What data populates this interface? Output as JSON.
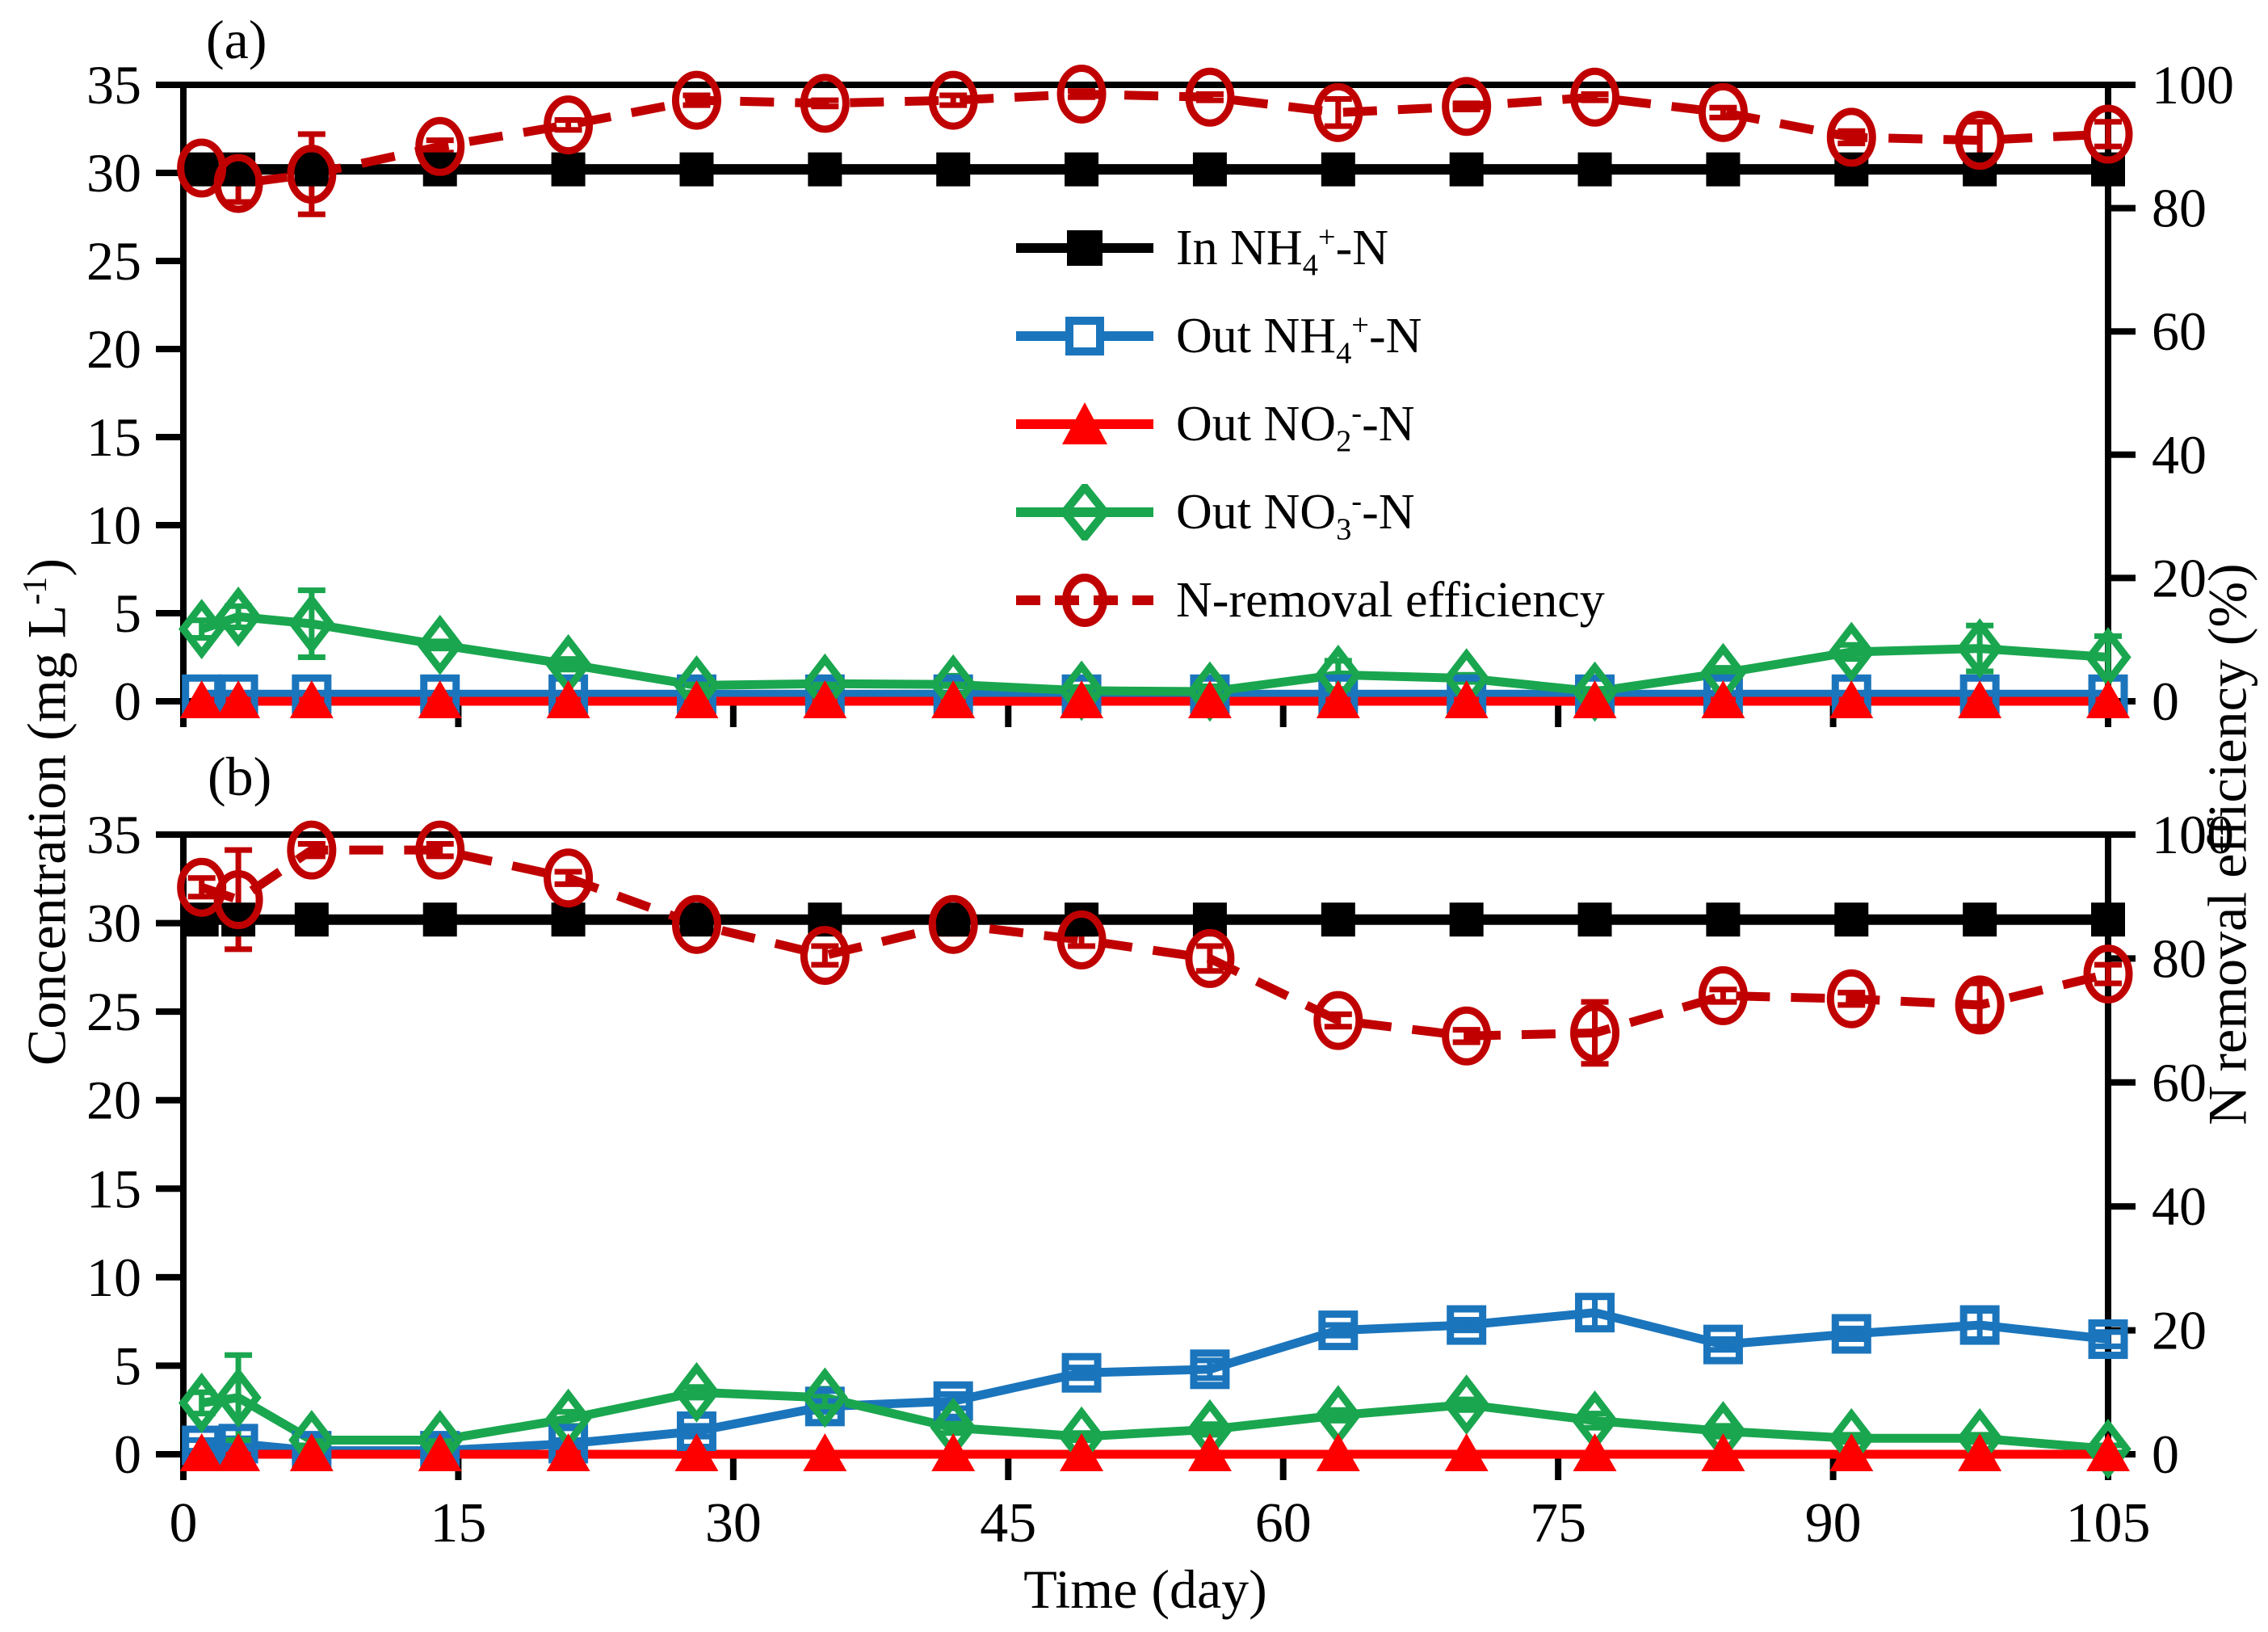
{
  "figure": {
    "panel_a_label": "(a)",
    "panel_b_label": "(b)",
    "x_axis_title": "Time (day)",
    "y_left_title_pre": "Concentration (mg L",
    "y_left_title_sup": "-1",
    "y_left_title_post": ")",
    "y_right_title": "N removal efficiency (%)"
  },
  "legend": {
    "items": [
      {
        "marker": "black-filled-square-icon",
        "pre": "In NH",
        "sub": "4",
        "sup": "+",
        "post": "-N"
      },
      {
        "marker": "blue-open-square-icon",
        "pre": "Out NH",
        "sub": "4",
        "sup": "+",
        "post": "-N"
      },
      {
        "marker": "red-filled-triangle-icon",
        "pre": "Out NO",
        "sub": "2",
        "sup": "-",
        "post": "-N"
      },
      {
        "marker": "green-open-diamond-icon",
        "pre": "Out NO",
        "sub": "3",
        "sup": "-",
        "post": "-N"
      },
      {
        "marker": "darkred-open-circle-icon",
        "pre": "N-removal efficiency",
        "sub": "",
        "sup": "",
        "post": ""
      }
    ]
  },
  "colors": {
    "black": "#000000",
    "blue": "#1b75bc",
    "green": "#1aa64f",
    "red": "#ff0000",
    "dark_red": "#c00000"
  },
  "chart_data": [
    {
      "type": "line",
      "panel": "a",
      "title": "",
      "xlabel": "Time (day)",
      "ylabel_left": "Concentration (mg L-1)",
      "ylabel_right": "N removal efficiency (%)",
      "xlim": [
        0,
        105
      ],
      "ylim_left": [
        0,
        35
      ],
      "ylim_right": [
        0,
        100
      ],
      "x_ticks": [
        0,
        15,
        30,
        45,
        60,
        75,
        90,
        105
      ],
      "left_ticks": [
        0,
        5,
        10,
        15,
        20,
        25,
        30,
        35
      ],
      "right_ticks": [
        0,
        20,
        40,
        60,
        80,
        100
      ],
      "x": [
        1,
        3,
        7,
        14,
        21,
        28,
        35,
        42,
        49,
        56,
        63,
        70,
        77,
        84,
        91,
        98,
        105
      ],
      "series": [
        {
          "id": "in_nh4",
          "name": "In NH4+-N",
          "axis": "left",
          "color": "black",
          "marker": "square-filled",
          "values": [
            30.2,
            30.2,
            30.2,
            30.2,
            30.2,
            30.2,
            30.2,
            30.2,
            30.2,
            30.2,
            30.2,
            30.2,
            30.2,
            30.2,
            30.2,
            30.2,
            30.2
          ],
          "errors": [
            0.6,
            0.5,
            0,
            0,
            0,
            0,
            0,
            0,
            0,
            0,
            0,
            0,
            0,
            0,
            0,
            0,
            0
          ]
        },
        {
          "id": "out_nh4",
          "name": "Out NH4+-N",
          "axis": "left",
          "color": "blue",
          "marker": "square-open",
          "values": [
            0.4,
            0.4,
            0.4,
            0.4,
            0.4,
            0.4,
            0.4,
            0.4,
            0.4,
            0.4,
            0.4,
            0.4,
            0.4,
            0.4,
            0.4,
            0.4,
            0.4
          ],
          "errors": [
            0,
            0,
            0,
            0,
            0,
            0,
            0,
            0,
            0,
            0,
            0,
            0,
            0,
            0,
            0,
            0,
            0
          ]
        },
        {
          "id": "out_no2",
          "name": "Out NO2--N",
          "axis": "left",
          "color": "red",
          "marker": "triangle-filled",
          "values": [
            0,
            0,
            0,
            0,
            0,
            0,
            0,
            0,
            0,
            0,
            0,
            0,
            0,
            0,
            0,
            0,
            0
          ],
          "errors": [
            0,
            0,
            0,
            0,
            0,
            0,
            0,
            0,
            0,
            0,
            0,
            0,
            0,
            0,
            0,
            0,
            0
          ]
        },
        {
          "id": "out_no3",
          "name": "Out NO3--N",
          "axis": "left",
          "color": "green",
          "marker": "diamond-open",
          "values": [
            4.1,
            4.8,
            4.4,
            3.2,
            2.1,
            0.9,
            1.0,
            0.95,
            0.6,
            0.55,
            1.5,
            1.3,
            0.55,
            1.6,
            2.8,
            3.0,
            2.5
          ],
          "errors": [
            0.5,
            0.6,
            1.9,
            0.2,
            0.3,
            0.4,
            0.2,
            0.5,
            0.2,
            0.3,
            0.8,
            0.2,
            0.15,
            0.3,
            0.4,
            1.3,
            1.2
          ]
        },
        {
          "id": "eff",
          "name": "N-removal efficiency",
          "axis": "right",
          "color": "dark_red",
          "marker": "circle-open",
          "dashed": true,
          "values": [
            86.5,
            84,
            85.5,
            90,
            93.5,
            97.5,
            97,
            97.5,
            98.5,
            98,
            95.5,
            96.5,
            98,
            95.5,
            91.5,
            91,
            92
          ],
          "errors": [
            1.5,
            3,
            6.5,
            1,
            0.8,
            0.8,
            0.5,
            0.8,
            0.5,
            0.5,
            2.2,
            0.5,
            0.5,
            0.8,
            1,
            3,
            2
          ]
        }
      ]
    },
    {
      "type": "line",
      "panel": "b",
      "title": "",
      "xlabel": "Time (day)",
      "ylabel_left": "Concentration (mg L-1)",
      "ylabel_right": "N removal efficiency (%)",
      "xlim": [
        0,
        105
      ],
      "ylim_left": [
        0,
        35
      ],
      "ylim_right": [
        0,
        100
      ],
      "x_ticks": [
        0,
        15,
        30,
        45,
        60,
        75,
        90,
        105
      ],
      "left_ticks": [
        0,
        5,
        10,
        15,
        20,
        25,
        30,
        35
      ],
      "right_ticks": [
        0,
        20,
        40,
        60,
        80,
        100
      ],
      "x": [
        1,
        3,
        7,
        14,
        21,
        28,
        35,
        42,
        49,
        56,
        63,
        70,
        77,
        84,
        91,
        98,
        105
      ],
      "series": [
        {
          "id": "in_nh4",
          "name": "In NH4+-N",
          "axis": "left",
          "color": "black",
          "marker": "square-filled",
          "values": [
            30.2,
            30.2,
            30.2,
            30.2,
            30.2,
            30.2,
            30.2,
            30.2,
            30.2,
            30.2,
            30.2,
            30.2,
            30.2,
            30.2,
            30.2,
            30.2,
            30.2
          ],
          "errors": [
            0,
            0,
            0,
            0,
            0,
            0,
            0,
            0,
            0,
            0,
            0,
            0,
            0,
            0,
            0,
            0,
            0
          ]
        },
        {
          "id": "out_nh4",
          "name": "Out NH4+-N",
          "axis": "left",
          "color": "blue",
          "marker": "square-open",
          "values": [
            0.5,
            0.6,
            0.2,
            0.2,
            0.6,
            1.3,
            2.7,
            3.0,
            4.6,
            4.8,
            7.0,
            7.3,
            8.0,
            6.2,
            6.8,
            7.3,
            6.5
          ],
          "errors": [
            0.3,
            0.3,
            0.15,
            0.15,
            0.2,
            0.3,
            0.3,
            0.4,
            0.3,
            0.5,
            0.3,
            0.3,
            0.9,
            0.3,
            0.3,
            0.8,
            0.4
          ]
        },
        {
          "id": "out_no2",
          "name": "Out NO2--N",
          "axis": "left",
          "color": "red",
          "marker": "triangle-filled",
          "values": [
            0,
            0,
            0,
            0,
            0,
            0,
            0,
            0,
            0,
            0,
            0,
            0,
            0,
            0,
            0,
            0,
            0
          ],
          "errors": [
            0,
            0,
            0,
            0,
            0,
            0,
            0,
            0,
            0,
            0,
            0,
            0,
            0,
            0,
            0,
            0,
            0
          ]
        },
        {
          "id": "out_no3",
          "name": "Out NO3--N",
          "axis": "left",
          "color": "green",
          "marker": "diamond-open",
          "values": [
            2.9,
            3.2,
            0.8,
            0.8,
            2.0,
            3.5,
            3.2,
            1.5,
            1.0,
            1.4,
            2.2,
            2.8,
            1.9,
            1.3,
            0.9,
            0.9,
            0.3
          ],
          "errors": [
            0.6,
            2.4,
            0.3,
            0.3,
            0.4,
            0.3,
            0.5,
            0.3,
            0.2,
            0.3,
            0.3,
            0.3,
            0.4,
            0.3,
            0.2,
            0.2,
            0.2
          ]
        },
        {
          "id": "eff",
          "name": "N-removal efficiency",
          "axis": "right",
          "color": "dark_red",
          "marker": "circle-open",
          "dashed": true,
          "values": [
            91.5,
            89.5,
            97.5,
            97.5,
            93,
            85.5,
            80.5,
            85.5,
            83,
            80,
            70,
            67.5,
            68,
            74,
            73.5,
            72.5,
            77.5
          ],
          "errors": [
            1.5,
            8,
            1,
            1,
            1,
            1,
            1.5,
            1.5,
            1,
            2,
            1,
            1,
            5,
            1,
            1,
            3.5,
            1.5
          ]
        }
      ]
    }
  ]
}
